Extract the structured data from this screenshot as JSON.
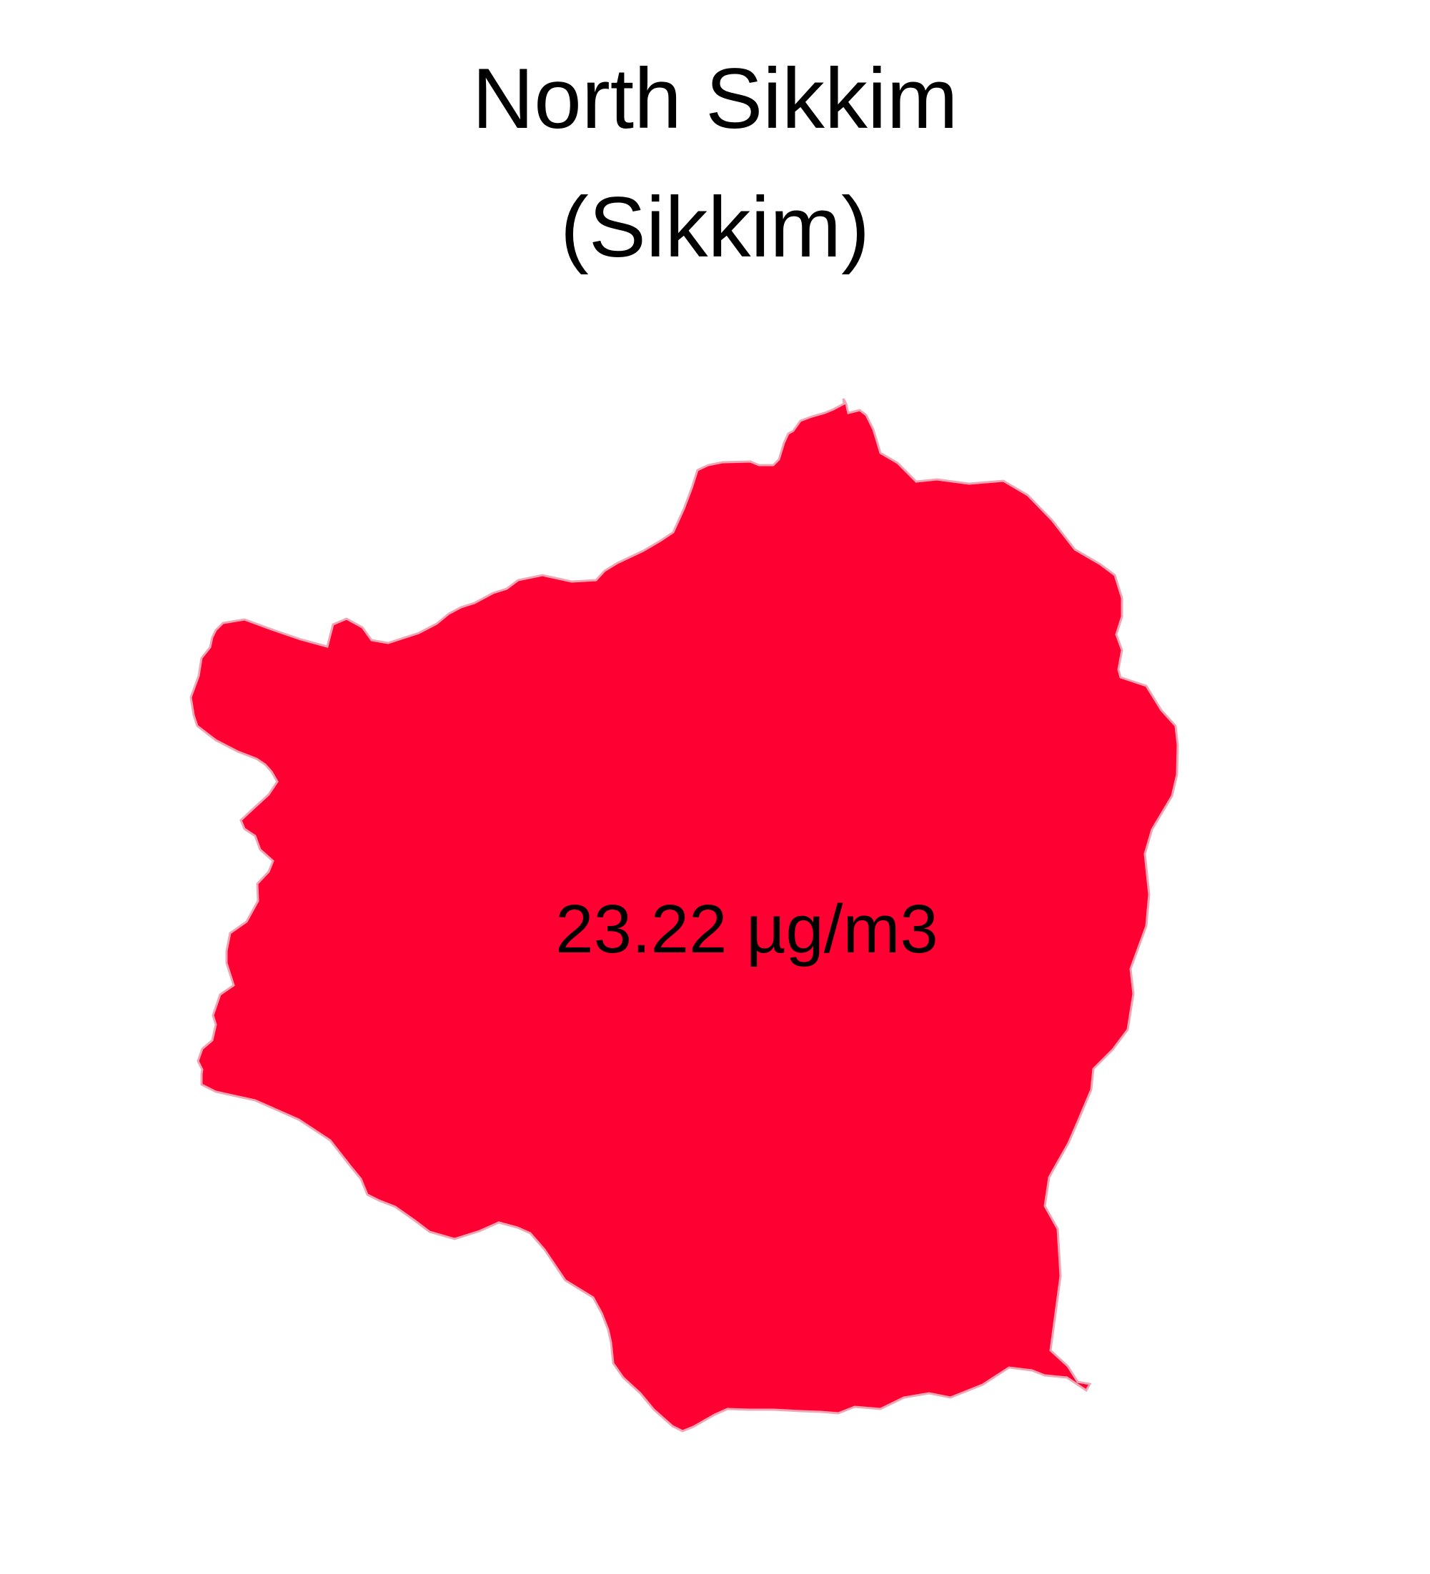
{
  "map": {
    "title_line1": "North Sikkim",
    "title_line2": "(Sikkim)",
    "region_value_label": "23.22 µg/m3",
    "fill_color": "#ff0033",
    "border_color": "#f2a6b4",
    "background_color": "#ffffff"
  }
}
